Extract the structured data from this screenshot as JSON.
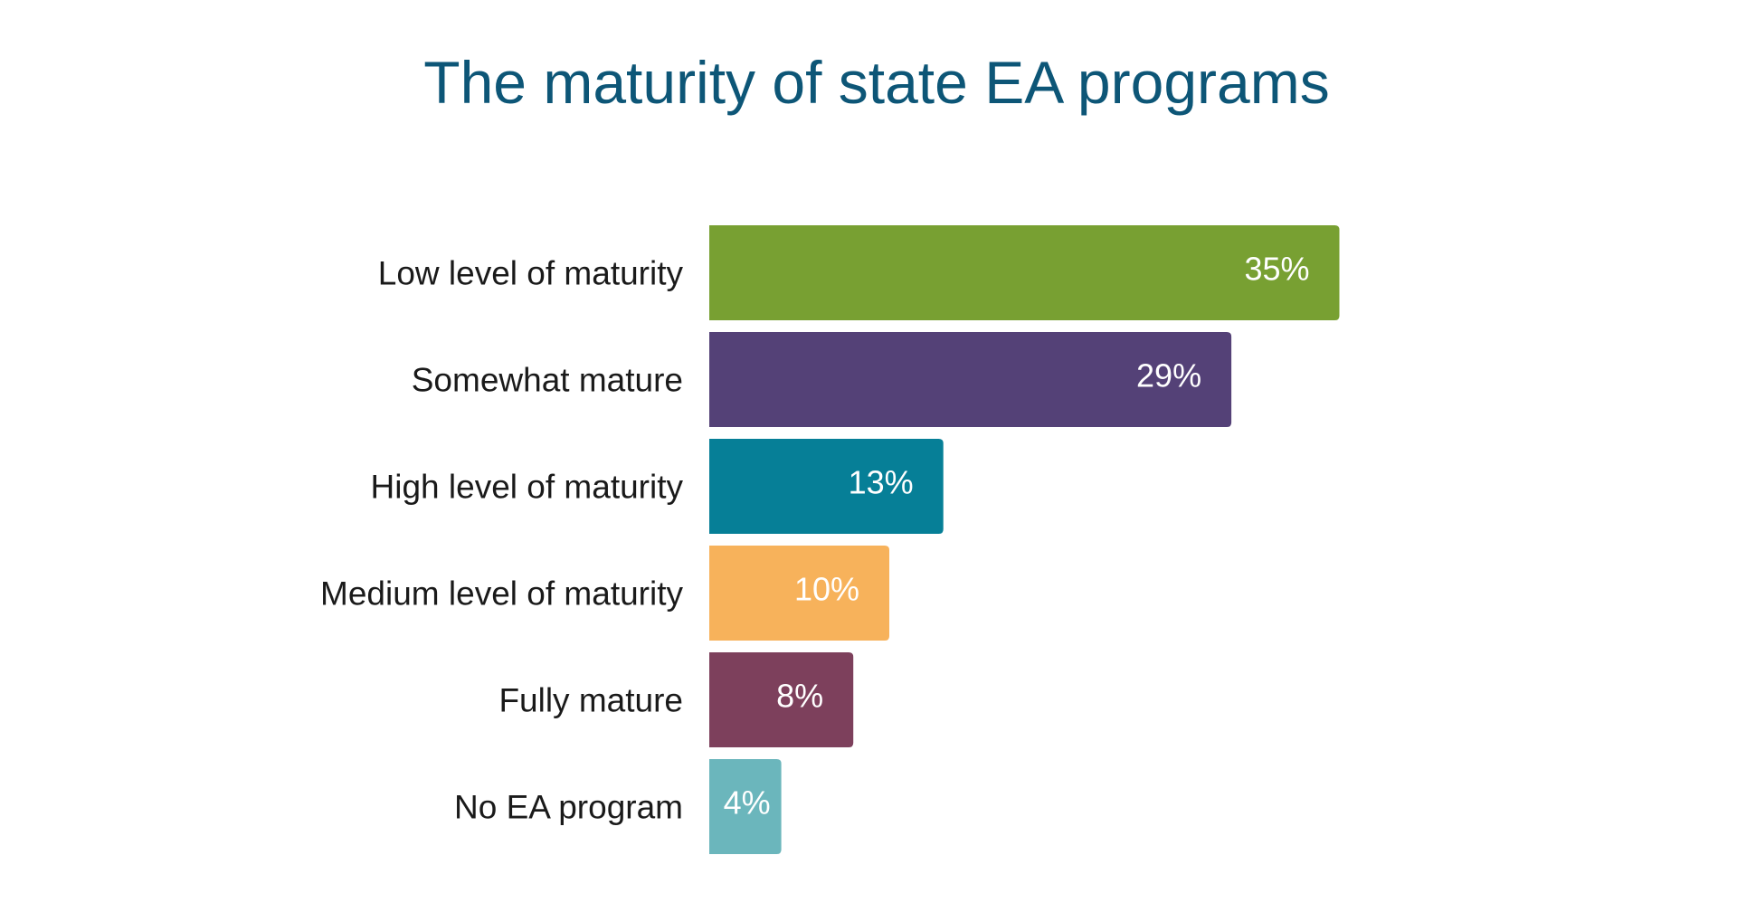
{
  "chart_data": {
    "type": "bar",
    "orientation": "horizontal",
    "title": "The maturity of state EA programs",
    "xlabel": "",
    "ylabel": "",
    "categories": [
      "Low level of maturity",
      "Somewhat mature",
      "High level of maturity",
      "Medium level of maturity",
      "Fully mature",
      "No EA program"
    ],
    "values": [
      35,
      29,
      13,
      10,
      8,
      4
    ],
    "value_labels": [
      "35%",
      "29%",
      "13%",
      "10%",
      "8%",
      "4%"
    ],
    "colors": [
      "#78a032",
      "#544177",
      "#067f97",
      "#f7b25b",
      "#7d405c",
      "#6bb6bc"
    ],
    "unit": "%",
    "grid": false,
    "axes_visible": false,
    "legend": "none"
  }
}
